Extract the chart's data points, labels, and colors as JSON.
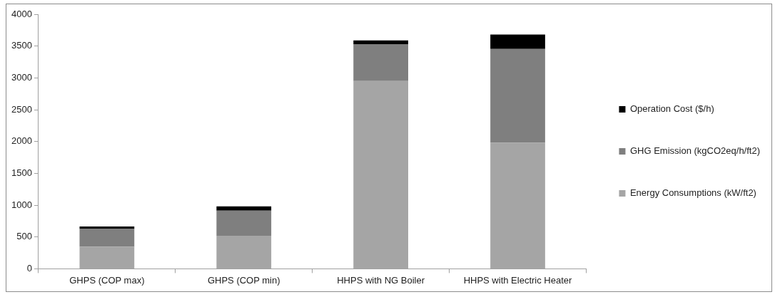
{
  "chart_data": {
    "type": "bar",
    "stacked": true,
    "categories": [
      "GHPS (COP max)",
      "GHPS (COP min)",
      "HHPS with NG Boiler",
      "HHPS with Electric Heater"
    ],
    "series": [
      {
        "name": "Energy Consumptions (kW/ft2)",
        "color": "#a5a5a5",
        "values": [
          345,
          520,
          2950,
          1980
        ]
      },
      {
        "name": "GHG Emission (kgCO2eq/h/ft2)",
        "color": "#7f7f7f",
        "values": [
          280,
          395,
          580,
          1475
        ]
      },
      {
        "name": "Operation Cost ($/h)",
        "color": "#000000",
        "values": [
          40,
          65,
          60,
          225
        ]
      }
    ],
    "ylim": [
      0,
      4000
    ],
    "yticks": [
      0,
      500,
      1000,
      1500,
      2000,
      2500,
      3000,
      3500,
      4000
    ],
    "grid": false,
    "legend": "right"
  }
}
